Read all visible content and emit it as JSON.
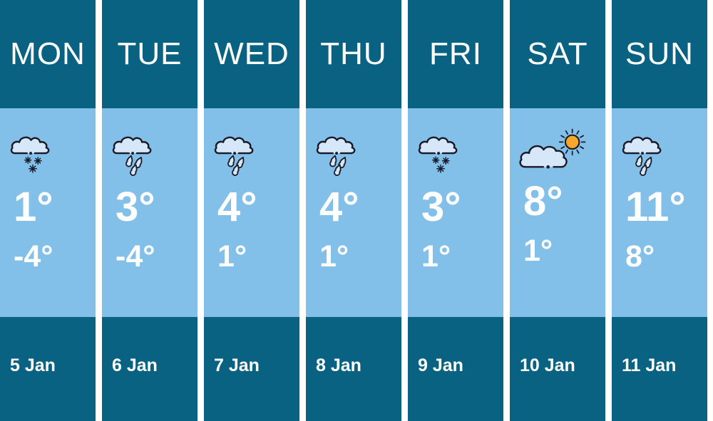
{
  "widget": {
    "title": "weekly-weather-forecast"
  },
  "colors": {
    "panel_dark": "#0a6283",
    "panel_light": "#82bfe9",
    "icon_outline": "#1a1b26",
    "cloud_fill": "#d5e7f8",
    "sun_fill": "#f6a72b",
    "text": "#ffffff",
    "background": "#ffffff"
  },
  "days": [
    {
      "day": "MON",
      "icon": "snow",
      "high": "1°",
      "low": "-4°",
      "date": "5 Jan"
    },
    {
      "day": "TUE",
      "icon": "rain",
      "high": "3°",
      "low": "-4°",
      "date": "6 Jan"
    },
    {
      "day": "WED",
      "icon": "rain",
      "high": "4°",
      "low": "1°",
      "date": "7 Jan"
    },
    {
      "day": "THU",
      "icon": "rain",
      "high": "4°",
      "low": "1°",
      "date": "8 Jan"
    },
    {
      "day": "FRI",
      "icon": "snow",
      "high": "3°",
      "low": "1°",
      "date": "9 Jan"
    },
    {
      "day": "SAT",
      "icon": "cloud-sun",
      "high": "8°",
      "low": "1°",
      "date": "10 Jan"
    },
    {
      "day": "SUN",
      "icon": "rain",
      "high": "11°",
      "low": "8°",
      "date": "11 Jan"
    }
  ]
}
